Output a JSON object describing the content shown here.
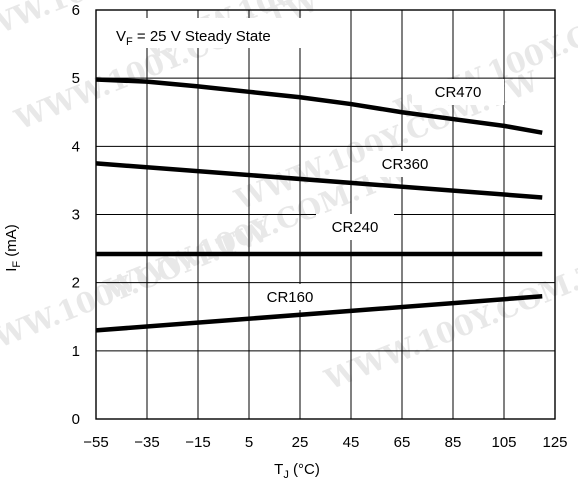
{
  "chart_data": {
    "type": "line",
    "annotation": {
      "prefix": "V",
      "sub": "F",
      "suffix": " = 25 V Steady State"
    },
    "xlabel": {
      "prefix": "T",
      "sub": "J",
      "suffix": " (°C)"
    },
    "ylabel": {
      "prefix": "I",
      "sub": "F",
      "suffix": " (mA)"
    },
    "xlim": [
      -55,
      125
    ],
    "ylim": [
      0,
      6
    ],
    "x_ticks": [
      "−55",
      "−35",
      "−15",
      "5",
      "25",
      "45",
      "65",
      "85",
      "105",
      "125"
    ],
    "y_ticks": [
      "0",
      "1",
      "2",
      "3",
      "4",
      "5",
      "6"
    ],
    "grid": true,
    "watermark": "WWW.100Y.COM.TW",
    "series": [
      {
        "name": "CR470",
        "x": [
          -55,
          -35,
          -15,
          5,
          25,
          45,
          65,
          85,
          105,
          120
        ],
        "y": [
          4.98,
          4.95,
          4.88,
          4.8,
          4.72,
          4.62,
          4.5,
          4.4,
          4.3,
          4.2
        ]
      },
      {
        "name": "CR360",
        "x": [
          -55,
          120
        ],
        "y": [
          3.75,
          3.25
        ]
      },
      {
        "name": "CR240",
        "x": [
          -55,
          120
        ],
        "y": [
          2.42,
          2.42
        ]
      },
      {
        "name": "CR160",
        "x": [
          -55,
          120
        ],
        "y": [
          1.3,
          1.8
        ]
      }
    ]
  }
}
